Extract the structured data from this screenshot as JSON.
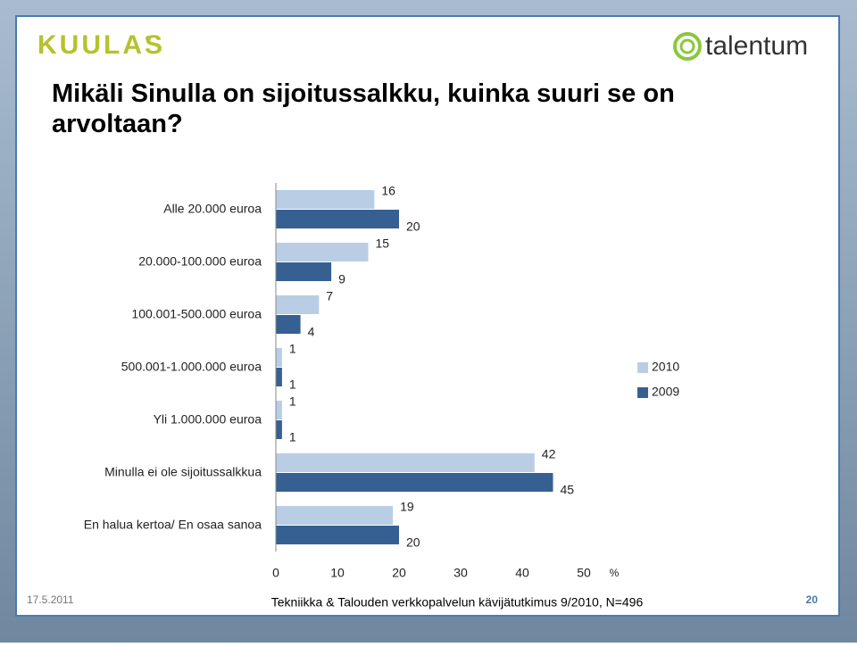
{
  "logos": {
    "left": "KUULAS",
    "right": "talentum"
  },
  "chart_data": {
    "type": "bar",
    "orientation": "horizontal",
    "title": "Mikäli Sinulla on sijoitussalkku, kuinka suuri se on arvoltaan?",
    "categories": [
      "Alle 20.000 euroa",
      "20.000-100.000 euroa",
      "100.001-500.000 euroa",
      "500.001-1.000.000 euroa",
      "Yli 1.000.000 euroa",
      "Minulla ei ole sijoitussalkkua",
      "En halua kertoa/ En osaa sanoa"
    ],
    "series": [
      {
        "name": "2010",
        "color": "#b9cde5",
        "values": [
          16,
          15,
          7,
          1,
          1,
          42,
          19
        ]
      },
      {
        "name": "2009",
        "color": "#376092",
        "values": [
          20,
          9,
          4,
          1,
          1,
          45,
          20
        ]
      }
    ],
    "xlim": [
      0,
      50
    ],
    "xticks": [
      0,
      10,
      20,
      30,
      40,
      50
    ],
    "x_label": "%",
    "legend": "right",
    "grid": false
  },
  "footer": {
    "date": "17.5.2011",
    "source": "Tekniikka & Talouden verkkopalvelun kävijätutkimus 9/2010, N=496",
    "page": "20"
  }
}
